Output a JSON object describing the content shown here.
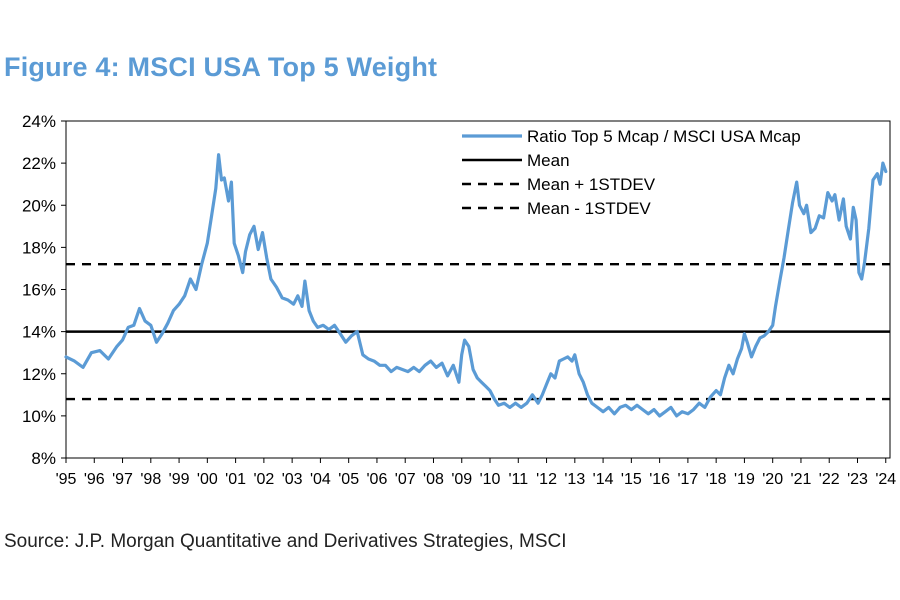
{
  "title": "Figure 4: MSCI USA Top 5 Weight",
  "source": "Source: J.P. Morgan Quantitative and Derivatives Strategies, MSCI",
  "colors": {
    "title": "#5b9bd5",
    "series": "#5b9bd5",
    "reference": "#000000"
  },
  "chart_data": {
    "type": "line",
    "title": "Figure 4: MSCI USA Top 5 Weight",
    "xlabel": "",
    "ylabel": "",
    "x_range": [
      1995,
      2024.15
    ],
    "ylim": [
      8,
      24
    ],
    "y_ticks": [
      8,
      10,
      12,
      14,
      16,
      18,
      20,
      22,
      24
    ],
    "y_tick_labels": [
      "8%",
      "10%",
      "12%",
      "14%",
      "16%",
      "18%",
      "20%",
      "22%",
      "24%"
    ],
    "x_tick_labels": [
      "'95",
      "'96",
      "'97",
      "'98",
      "'99",
      "'00",
      "'01",
      "'02",
      "'03",
      "'04",
      "'05",
      "'06",
      "'07",
      "'08",
      "'09",
      "'10",
      "'11",
      "'12",
      "'13",
      "'14",
      "'15",
      "'16",
      "'17",
      "'18",
      "'19",
      "'20",
      "'21",
      "'22",
      "'23",
      "'24"
    ],
    "grid": false,
    "legend_position": "top-right",
    "legend": [
      {
        "label": "Ratio Top 5 Mcap / MSCI USA Mcap",
        "style": "solid-blue"
      },
      {
        "label": "Mean",
        "style": "solid-black"
      },
      {
        "label": "Mean + 1STDEV",
        "style": "dashed-black"
      },
      {
        "label": "Mean - 1STDEV",
        "style": "dashed-black"
      }
    ],
    "reference_lines": {
      "mean": 14.0,
      "mean_plus_1stdev": 17.2,
      "mean_minus_1stdev": 10.8
    },
    "series": [
      {
        "name": "Ratio Top 5 Mcap / MSCI USA Mcap",
        "points": [
          [
            1995.0,
            12.8
          ],
          [
            1995.3,
            12.6
          ],
          [
            1995.6,
            12.3
          ],
          [
            1995.9,
            13.0
          ],
          [
            1996.2,
            13.1
          ],
          [
            1996.5,
            12.7
          ],
          [
            1996.8,
            13.3
          ],
          [
            1997.0,
            13.6
          ],
          [
            1997.2,
            14.2
          ],
          [
            1997.4,
            14.3
          ],
          [
            1997.6,
            15.1
          ],
          [
            1997.8,
            14.5
          ],
          [
            1998.0,
            14.3
          ],
          [
            1998.2,
            13.5
          ],
          [
            1998.4,
            13.9
          ],
          [
            1998.6,
            14.4
          ],
          [
            1998.8,
            15.0
          ],
          [
            1999.0,
            15.3
          ],
          [
            1999.2,
            15.7
          ],
          [
            1999.4,
            16.5
          ],
          [
            1999.6,
            16.0
          ],
          [
            1999.8,
            17.2
          ],
          [
            2000.0,
            18.2
          ],
          [
            2000.15,
            19.5
          ],
          [
            2000.3,
            20.8
          ],
          [
            2000.4,
            22.4
          ],
          [
            2000.5,
            21.2
          ],
          [
            2000.6,
            21.3
          ],
          [
            2000.75,
            20.2
          ],
          [
            2000.85,
            21.1
          ],
          [
            2000.95,
            18.2
          ],
          [
            2001.1,
            17.6
          ],
          [
            2001.25,
            16.8
          ],
          [
            2001.35,
            17.8
          ],
          [
            2001.5,
            18.6
          ],
          [
            2001.65,
            19.0
          ],
          [
            2001.8,
            17.9
          ],
          [
            2001.95,
            18.7
          ],
          [
            2002.1,
            17.5
          ],
          [
            2002.25,
            16.5
          ],
          [
            2002.45,
            16.1
          ],
          [
            2002.65,
            15.6
          ],
          [
            2002.85,
            15.5
          ],
          [
            2003.05,
            15.3
          ],
          [
            2003.2,
            15.7
          ],
          [
            2003.35,
            15.2
          ],
          [
            2003.45,
            16.4
          ],
          [
            2003.6,
            15.0
          ],
          [
            2003.75,
            14.5
          ],
          [
            2003.9,
            14.2
          ],
          [
            2004.1,
            14.3
          ],
          [
            2004.3,
            14.1
          ],
          [
            2004.5,
            14.3
          ],
          [
            2004.7,
            13.9
          ],
          [
            2004.9,
            13.5
          ],
          [
            2005.1,
            13.8
          ],
          [
            2005.3,
            14.0
          ],
          [
            2005.5,
            12.9
          ],
          [
            2005.7,
            12.7
          ],
          [
            2005.9,
            12.6
          ],
          [
            2006.1,
            12.4
          ],
          [
            2006.3,
            12.4
          ],
          [
            2006.5,
            12.1
          ],
          [
            2006.7,
            12.3
          ],
          [
            2006.9,
            12.2
          ],
          [
            2007.1,
            12.1
          ],
          [
            2007.3,
            12.3
          ],
          [
            2007.5,
            12.1
          ],
          [
            2007.7,
            12.4
          ],
          [
            2007.9,
            12.6
          ],
          [
            2008.1,
            12.3
          ],
          [
            2008.3,
            12.5
          ],
          [
            2008.5,
            11.9
          ],
          [
            2008.7,
            12.4
          ],
          [
            2008.9,
            11.6
          ],
          [
            2009.0,
            12.9
          ],
          [
            2009.1,
            13.6
          ],
          [
            2009.25,
            13.3
          ],
          [
            2009.4,
            12.2
          ],
          [
            2009.55,
            11.8
          ],
          [
            2009.7,
            11.6
          ],
          [
            2009.85,
            11.4
          ],
          [
            2010.0,
            11.2
          ],
          [
            2010.15,
            10.8
          ],
          [
            2010.3,
            10.5
          ],
          [
            2010.5,
            10.6
          ],
          [
            2010.7,
            10.4
          ],
          [
            2010.9,
            10.6
          ],
          [
            2011.1,
            10.4
          ],
          [
            2011.3,
            10.6
          ],
          [
            2011.5,
            11.0
          ],
          [
            2011.7,
            10.6
          ],
          [
            2011.85,
            11.0
          ],
          [
            2012.0,
            11.5
          ],
          [
            2012.15,
            12.0
          ],
          [
            2012.3,
            11.8
          ],
          [
            2012.45,
            12.6
          ],
          [
            2012.6,
            12.7
          ],
          [
            2012.75,
            12.8
          ],
          [
            2012.9,
            12.6
          ],
          [
            2013.0,
            12.9
          ],
          [
            2013.15,
            12.0
          ],
          [
            2013.3,
            11.6
          ],
          [
            2013.45,
            11.0
          ],
          [
            2013.6,
            10.6
          ],
          [
            2013.8,
            10.4
          ],
          [
            2014.0,
            10.2
          ],
          [
            2014.2,
            10.4
          ],
          [
            2014.4,
            10.1
          ],
          [
            2014.6,
            10.4
          ],
          [
            2014.8,
            10.5
          ],
          [
            2015.0,
            10.3
          ],
          [
            2015.2,
            10.5
          ],
          [
            2015.4,
            10.3
          ],
          [
            2015.6,
            10.1
          ],
          [
            2015.8,
            10.3
          ],
          [
            2016.0,
            10.0
          ],
          [
            2016.2,
            10.2
          ],
          [
            2016.4,
            10.4
          ],
          [
            2016.6,
            10.0
          ],
          [
            2016.8,
            10.2
          ],
          [
            2017.0,
            10.1
          ],
          [
            2017.2,
            10.3
          ],
          [
            2017.4,
            10.6
          ],
          [
            2017.6,
            10.4
          ],
          [
            2017.8,
            10.9
          ],
          [
            2018.0,
            11.2
          ],
          [
            2018.15,
            11.0
          ],
          [
            2018.3,
            11.8
          ],
          [
            2018.45,
            12.4
          ],
          [
            2018.6,
            12.0
          ],
          [
            2018.75,
            12.7
          ],
          [
            2018.9,
            13.2
          ],
          [
            2019.0,
            13.9
          ],
          [
            2019.1,
            13.5
          ],
          [
            2019.25,
            12.8
          ],
          [
            2019.4,
            13.3
          ],
          [
            2019.55,
            13.7
          ],
          [
            2019.7,
            13.8
          ],
          [
            2019.85,
            14.0
          ],
          [
            2020.0,
            14.3
          ],
          [
            2020.1,
            15.2
          ],
          [
            2020.25,
            16.4
          ],
          [
            2020.4,
            17.5
          ],
          [
            2020.55,
            18.8
          ],
          [
            2020.7,
            20.1
          ],
          [
            2020.85,
            21.1
          ],
          [
            2020.95,
            20.0
          ],
          [
            2021.1,
            19.6
          ],
          [
            2021.2,
            20.0
          ],
          [
            2021.35,
            18.7
          ],
          [
            2021.5,
            18.9
          ],
          [
            2021.65,
            19.5
          ],
          [
            2021.8,
            19.4
          ],
          [
            2021.95,
            20.6
          ],
          [
            2022.1,
            20.2
          ],
          [
            2022.2,
            20.5
          ],
          [
            2022.35,
            19.3
          ],
          [
            2022.5,
            20.3
          ],
          [
            2022.6,
            19.0
          ],
          [
            2022.75,
            18.4
          ],
          [
            2022.85,
            19.9
          ],
          [
            2022.95,
            19.3
          ],
          [
            2023.05,
            16.8
          ],
          [
            2023.15,
            16.5
          ],
          [
            2023.25,
            17.3
          ],
          [
            2023.4,
            18.9
          ],
          [
            2023.55,
            21.2
          ],
          [
            2023.7,
            21.5
          ],
          [
            2023.8,
            21.0
          ],
          [
            2023.9,
            22.0
          ],
          [
            2024.0,
            21.6
          ]
        ]
      }
    ]
  }
}
